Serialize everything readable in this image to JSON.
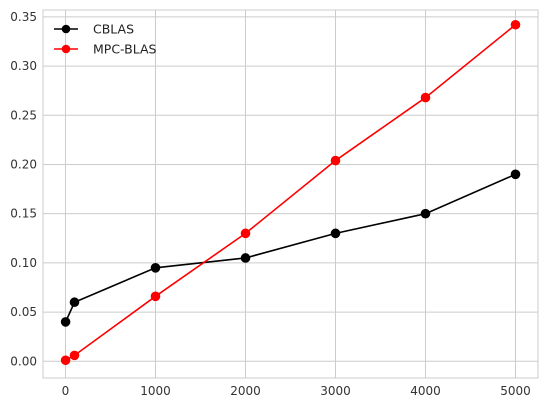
{
  "chart_data": {
    "type": "line",
    "title": "",
    "xlabel": "",
    "ylabel": "",
    "xlim": [
      -250,
      5250
    ],
    "ylim": [
      -0.017,
      0.357
    ],
    "xticks": [
      0,
      1000,
      2000,
      3000,
      4000,
      5000
    ],
    "xtick_labels": [
      "0",
      "1000",
      "2000",
      "3000",
      "4000",
      "5000"
    ],
    "yticks": [
      0.0,
      0.05,
      0.1,
      0.15,
      0.2,
      0.25,
      0.3,
      0.35
    ],
    "ytick_labels": [
      "0.00",
      "0.05",
      "0.10",
      "0.15",
      "0.20",
      "0.25",
      "0.30",
      "0.35"
    ],
    "grid": true,
    "legend_position": "top-left",
    "series": [
      {
        "name": "CBLAS",
        "color": "#000000",
        "marker": "circle",
        "x": [
          1,
          100,
          1000,
          2000,
          3000,
          4000,
          5000
        ],
        "y": [
          0.04,
          0.06,
          0.095,
          0.105,
          0.13,
          0.15,
          0.19
        ]
      },
      {
        "name": "MPC-BLAS",
        "color": "#ff0000",
        "marker": "circle",
        "x": [
          1,
          100,
          1000,
          2000,
          3000,
          4000,
          5000
        ],
        "y": [
          0.001,
          0.006,
          0.066,
          0.13,
          0.204,
          0.268,
          0.342
        ]
      }
    ]
  }
}
